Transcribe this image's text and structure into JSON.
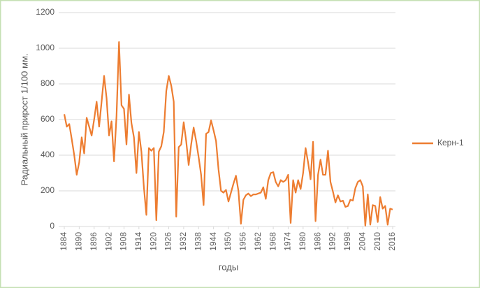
{
  "chart_data": {
    "type": "line",
    "y_label": "Радиальный прирост 1/100 мм.",
    "x_label": "годы",
    "x": [
      1884,
      1885,
      1886,
      1887,
      1888,
      1889,
      1890,
      1891,
      1892,
      1893,
      1894,
      1895,
      1896,
      1897,
      1898,
      1899,
      1900,
      1901,
      1902,
      1903,
      1904,
      1905,
      1906,
      1907,
      1908,
      1909,
      1910,
      1911,
      1912,
      1913,
      1914,
      1915,
      1916,
      1917,
      1918,
      1919,
      1920,
      1921,
      1922,
      1923,
      1924,
      1925,
      1926,
      1927,
      1928,
      1929,
      1930,
      1931,
      1932,
      1933,
      1934,
      1935,
      1936,
      1937,
      1938,
      1939,
      1940,
      1941,
      1942,
      1943,
      1944,
      1945,
      1946,
      1947,
      1948,
      1949,
      1950,
      1951,
      1952,
      1953,
      1954,
      1955,
      1956,
      1957,
      1958,
      1959,
      1960,
      1961,
      1962,
      1963,
      1964,
      1965,
      1966,
      1967,
      1968,
      1969,
      1970,
      1971,
      1972,
      1973,
      1974,
      1975,
      1976,
      1977,
      1978,
      1979,
      1980,
      1981,
      1982,
      1983,
      1984,
      1985,
      1986,
      1987,
      1988,
      1989,
      1990,
      1991,
      1992,
      1993,
      1994,
      1995,
      1996,
      1997,
      1998,
      1999,
      2000,
      2001,
      2002,
      2003,
      2004,
      2005,
      2006,
      2007,
      2008,
      2009,
      2010,
      2011,
      2012,
      2013,
      2014,
      2015,
      2016
    ],
    "series": [
      {
        "name": "Керн-1",
        "color": "#ed7d31",
        "values": [
          630,
          560,
          575,
          490,
          400,
          290,
          360,
          500,
          410,
          610,
          560,
          510,
          600,
          700,
          560,
          700,
          845,
          720,
          510,
          590,
          365,
          620,
          1035,
          680,
          660,
          460,
          740,
          580,
          500,
          300,
          530,
          420,
          220,
          65,
          440,
          425,
          440,
          35,
          420,
          450,
          530,
          760,
          845,
          790,
          700,
          55,
          445,
          460,
          585,
          480,
          345,
          460,
          555,
          480,
          390,
          290,
          120,
          520,
          530,
          595,
          540,
          480,
          320,
          200,
          190,
          205,
          140,
          190,
          240,
          285,
          200,
          15,
          150,
          175,
          185,
          170,
          180,
          180,
          185,
          190,
          220,
          155,
          260,
          300,
          305,
          250,
          225,
          260,
          250,
          260,
          290,
          20,
          260,
          190,
          260,
          210,
          300,
          440,
          360,
          265,
          475,
          30,
          290,
          375,
          290,
          290,
          425,
          250,
          195,
          135,
          175,
          140,
          145,
          110,
          115,
          150,
          145,
          215,
          250,
          260,
          225,
          5,
          180,
          10,
          120,
          115,
          25,
          165,
          100,
          115,
          10,
          100,
          95
        ]
      }
    ],
    "xlim": [
      1884,
      2016
    ],
    "xticks": [
      1884,
      1890,
      1896,
      1902,
      1908,
      1914,
      1920,
      1926,
      1932,
      1938,
      1944,
      1950,
      1956,
      1962,
      1968,
      1974,
      1980,
      1986,
      1992,
      1998,
      2004,
      2010,
      2016
    ],
    "ylim": [
      0,
      1200
    ],
    "yticks": [
      0,
      200,
      400,
      600,
      800,
      1000,
      1200
    ],
    "grid": true,
    "legend": "right"
  }
}
